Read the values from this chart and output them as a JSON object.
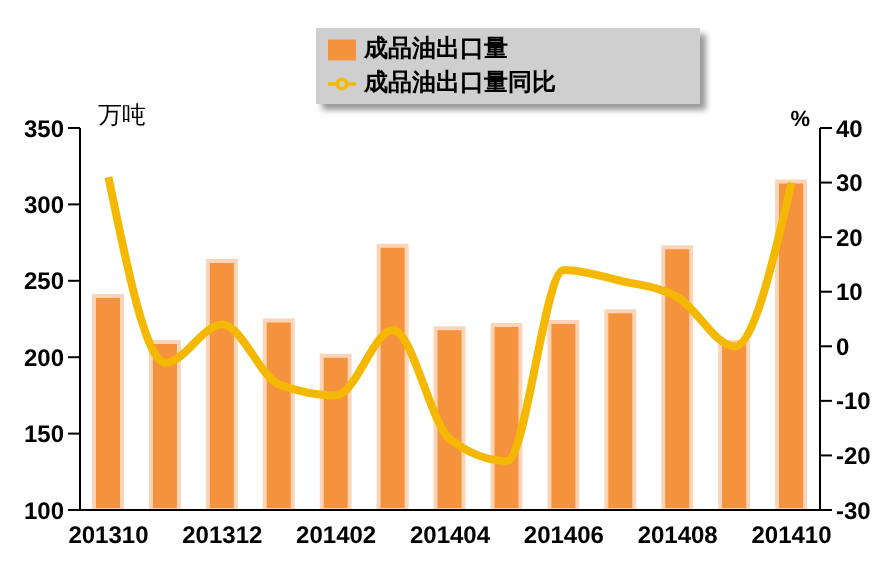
{
  "chart_data": {
    "type": "bar",
    "categories": [
      "201310",
      null,
      "201312",
      null,
      "201402",
      null,
      "201404",
      null,
      "201406",
      null,
      "201408",
      null,
      "201410"
    ],
    "ylabel": "万吨",
    "y2label": "%",
    "series": [
      {
        "name": "成品油出口量",
        "color": "#f5923e",
        "values": [
          240,
          210,
          263,
          224,
          201,
          273,
          219,
          221,
          223,
          230,
          272,
          210,
          315
        ]
      },
      {
        "name": "成品油出口量同比",
        "type": "line",
        "axis": "y2",
        "color": "#f5b800",
        "values": [
          31,
          -3,
          4,
          -7,
          -9,
          3,
          -17,
          -21,
          14,
          12,
          9,
          0,
          30
        ]
      }
    ],
    "ylim": [
      100,
      350
    ],
    "yticks": [
      100,
      150,
      200,
      250,
      300,
      350
    ],
    "y2lim": [
      -30,
      40
    ],
    "y2ticks": [
      -30,
      -20,
      -10,
      0,
      10,
      20,
      30,
      40
    ],
    "legend": "top",
    "marker": "none",
    "grid": false
  }
}
